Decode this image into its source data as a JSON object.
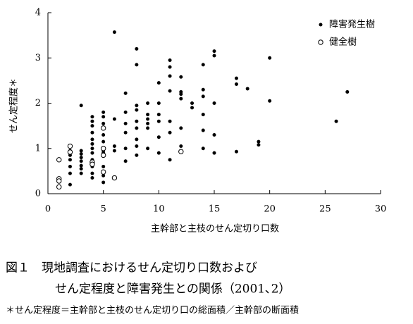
{
  "chart_data": {
    "type": "scatter",
    "xlabel": "主幹部と主枝のせん定切り口数",
    "ylabel": "せん定程度＊",
    "xlim": [
      0,
      30
    ],
    "xticks": [
      0,
      5,
      10,
      15,
      20,
      25,
      30
    ],
    "ylim": [
      0,
      4
    ],
    "yticks": [
      0,
      1,
      2,
      3,
      4
    ],
    "legend": "upper right",
    "series": [
      {
        "name": "障害発生樹",
        "color": "#000000",
        "marker": "filled",
        "x": [
          1,
          2,
          2,
          2,
          2,
          2,
          2,
          3,
          3,
          3,
          3,
          3,
          3,
          3,
          3,
          4,
          4,
          4,
          4,
          4,
          4,
          4,
          4,
          4,
          4,
          4,
          4,
          5,
          5,
          5,
          5,
          5,
          5,
          5,
          5,
          5,
          5,
          6,
          6,
          6,
          6,
          7,
          7,
          7,
          7,
          7,
          7,
          8,
          8,
          8,
          8,
          8,
          8,
          8,
          8,
          8,
          9,
          9,
          9,
          9,
          9,
          9,
          10,
          10,
          10,
          10,
          10,
          10,
          11,
          11,
          11,
          11,
          11,
          11,
          11,
          12,
          12,
          12,
          12,
          12,
          12,
          13,
          13,
          14,
          14,
          14,
          14,
          14,
          14,
          15,
          15,
          15,
          15,
          15,
          17,
          17,
          17,
          18,
          19,
          19,
          20,
          20,
          26,
          27
        ],
        "values": [
          0.3,
          0.95,
          0.85,
          0.75,
          0.6,
          0.45,
          0.2,
          1.95,
          0.95,
          0.88,
          0.8,
          0.72,
          0.62,
          0.55,
          0.45,
          1.7,
          1.6,
          1.5,
          1.35,
          1.2,
          1.1,
          1.0,
          0.9,
          0.75,
          0.6,
          0.45,
          0.35,
          1.8,
          1.7,
          1.55,
          1.3,
          1.15,
          0.95,
          0.9,
          0.6,
          0.4,
          0.25,
          3.57,
          1.65,
          1.05,
          0.95,
          2.22,
          1.8,
          1.55,
          1.35,
          1.0,
          0.72,
          3.2,
          2.85,
          1.95,
          1.85,
          1.6,
          1.45,
          1.2,
          1.05,
          0.85,
          2.0,
          1.75,
          1.65,
          1.55,
          1.45,
          1.0,
          2.45,
          2.0,
          1.75,
          1.6,
          1.25,
          0.9,
          2.95,
          2.8,
          2.6,
          2.27,
          1.6,
          1.35,
          0.75,
          2.58,
          2.25,
          2.2,
          2.1,
          1.45,
          1.05,
          2.0,
          1.9,
          2.85,
          2.3,
          2.15,
          1.75,
          1.4,
          1.0,
          3.15,
          3.05,
          2.0,
          1.3,
          0.9,
          2.55,
          2.42,
          0.93,
          2.32,
          1.15,
          1.08,
          3.0,
          2.05,
          1.6,
          2.25
        ]
      },
      {
        "name": "健全樹",
        "color": "#000000",
        "marker": "open",
        "x": [
          1,
          1,
          1,
          1,
          2,
          2,
          4,
          4,
          5,
          5,
          5,
          5,
          6,
          12
        ],
        "values": [
          0.75,
          0.33,
          0.28,
          0.15,
          1.05,
          0.92,
          0.7,
          0.65,
          1.45,
          1.0,
          0.85,
          0.48,
          0.35,
          0.93
        ]
      }
    ],
    "caption": [
      "図１　現地調査におけるせん定切り口数および",
      "せん定程度と障害発生との関係（2001､2）"
    ],
    "note": "＊せん定程度＝主幹部と主枝のせん定切り口の総面積／主幹部の断面積"
  }
}
